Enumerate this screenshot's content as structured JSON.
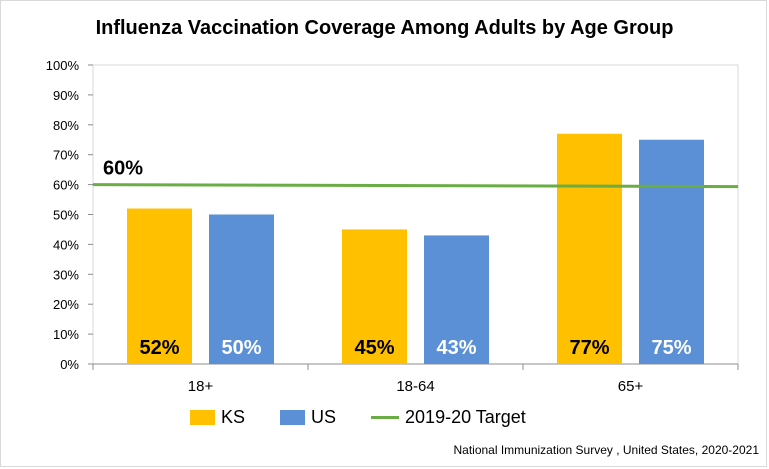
{
  "chart_data": {
    "type": "bar",
    "title": "Influenza Vaccination Coverage Among Adults by Age Group",
    "categories": [
      "18+",
      "18-64",
      "65+"
    ],
    "series": [
      {
        "name": "KS",
        "values": [
          52,
          45,
          77
        ],
        "labels": [
          "52%",
          "45%",
          "77%"
        ],
        "color": "#ffc000",
        "label_color": "#000000"
      },
      {
        "name": "US",
        "values": [
          50,
          43,
          75
        ],
        "labels": [
          "50%",
          "43%",
          "75%"
        ],
        "color": "#5b8fd6",
        "label_color": "#ffffff"
      }
    ],
    "target": {
      "name": "2019-20 Target",
      "value": 60,
      "label": "60%",
      "color": "#6aad45"
    },
    "ylim": [
      0,
      100
    ],
    "yticks": [
      0,
      10,
      20,
      30,
      40,
      50,
      60,
      70,
      80,
      90,
      100
    ],
    "ytick_labels": [
      "0%",
      "10%",
      "20%",
      "30%",
      "40%",
      "50%",
      "60%",
      "70%",
      "80%",
      "90%",
      "100%"
    ],
    "xlabel": "",
    "ylabel": "",
    "grid": false,
    "legend_position": "bottom"
  },
  "source": "National Immunization Survey , United States, 2020-2021"
}
